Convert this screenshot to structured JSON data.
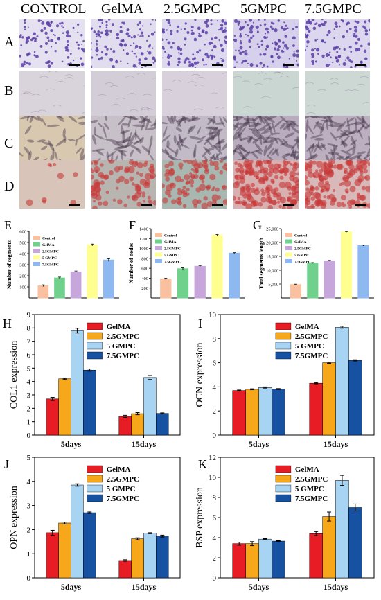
{
  "columns": [
    "CONTROL",
    "GelMA",
    "2.5GMPC",
    "5GMPC",
    "7.5GMPC"
  ],
  "rows": [
    {
      "label": "A",
      "stain": "crystal-violet",
      "bg": [
        "#e6e1f0",
        "#e1dcee",
        "#ddd8ee",
        "#d6d0ec",
        "#dcd6ee"
      ],
      "fg": "#5a3fa6",
      "density": [
        0.55,
        0.6,
        0.62,
        0.68,
        0.6
      ]
    },
    {
      "label": "B",
      "stain": "pale",
      "bg": [
        "#d9d3dc",
        "#d3cdd8",
        "#d8d0da",
        "#c9d6d1",
        "#cdd8d4"
      ],
      "fg": "#9e90a6",
      "density": [
        0.08,
        0.08,
        0.08,
        0.08,
        0.08
      ]
    },
    {
      "label": "C",
      "stain": "alp",
      "bg": [
        "#d8c8b0",
        "#c8c0c8",
        "#c2bac6",
        "#b8acbe",
        "#bcb0c0"
      ],
      "fg": "#4a3a4e",
      "density": [
        0.2,
        0.35,
        0.45,
        0.55,
        0.5
      ]
    },
    {
      "label": "D",
      "stain": "alizarin",
      "bg": [
        "#d8c4b8",
        "#b8b4b0",
        "#a8b8b0",
        "#d8b0b0",
        "#d8b8b8"
      ],
      "fg": "#c83838",
      "density": [
        0.05,
        0.45,
        0.5,
        0.85,
        0.8
      ]
    }
  ],
  "small_charts": [
    {
      "panel": "E",
      "ylabel": "Number of segments",
      "ylim": [
        0,
        600
      ],
      "yticks": [
        100,
        200,
        300,
        400,
        500,
        600
      ],
      "legend": [
        "Control",
        "GelMA",
        "2.5GMPC",
        "5 GMPC",
        "7.5GMPC"
      ],
      "values": [
        110,
        180,
        235,
        478,
        342
      ],
      "errors": [
        8,
        8,
        8,
        8,
        12
      ]
    },
    {
      "panel": "F",
      "ylabel": "Number of nodes",
      "ylim": [
        0,
        1400
      ],
      "yticks": [
        200,
        400,
        600,
        800,
        1000,
        1200,
        1400
      ],
      "legend": [
        "Control",
        "GelMA",
        "2.5GMPC",
        "5 GMPC",
        "7.5GMPC"
      ],
      "values": [
        385,
        590,
        640,
        1265,
        905
      ],
      "errors": [
        15,
        20,
        15,
        15,
        10
      ]
    },
    {
      "panel": "G",
      "ylabel": "Total segments length",
      "ylim": [
        0,
        25000
      ],
      "yticks": [
        5000,
        10000,
        15000,
        20000,
        25000
      ],
      "ytick_labels": [
        "5,000",
        "10,000",
        "15,000",
        "20,000",
        "25,000"
      ],
      "legend": [
        "Control",
        "GelMA",
        "2.5GMPC",
        "5 GMPC",
        "7.5GMPC"
      ],
      "values": [
        4800,
        12600,
        13400,
        23800,
        18900
      ],
      "errors": [
        150,
        150,
        150,
        150,
        150
      ]
    }
  ],
  "small_colors": [
    "#f9c19f",
    "#6fd18c",
    "#c7a6dc",
    "#ffff90",
    "#8db8f0"
  ],
  "chart_data": [
    {
      "type": "bar",
      "panel": "H",
      "ylabel": "COL1 expression",
      "ylim": [
        0,
        9
      ],
      "yticks": [
        0,
        1,
        2,
        3,
        4,
        5,
        6,
        7,
        8,
        9
      ],
      "categories": [
        "5days",
        "15days"
      ],
      "series": [
        {
          "name": "GelMA",
          "values": [
            2.7,
            1.4
          ],
          "errors": [
            0.12,
            0.08
          ]
        },
        {
          "name": "2.5GMPC",
          "values": [
            4.2,
            1.6
          ],
          "errors": [
            0.05,
            0.08
          ]
        },
        {
          "name": "5 GMPC",
          "values": [
            7.8,
            4.3
          ],
          "errors": [
            0.18,
            0.15
          ]
        },
        {
          "name": "7.5GMPC",
          "values": [
            4.85,
            1.62
          ],
          "errors": [
            0.08,
            0.04
          ]
        }
      ]
    },
    {
      "type": "bar",
      "panel": "I",
      "ylabel": "OCN expression",
      "ylim": [
        0,
        10
      ],
      "yticks": [
        0,
        2,
        4,
        6,
        8,
        10
      ],
      "categories": [
        "5days",
        "15days"
      ],
      "series": [
        {
          "name": "GelMA",
          "values": [
            3.7,
            4.3
          ],
          "errors": [
            0.04,
            0.05
          ]
        },
        {
          "name": "2.5GMPC",
          "values": [
            3.8,
            6.0
          ],
          "errors": [
            0.04,
            0.05
          ]
        },
        {
          "name": "5 GMPC",
          "values": [
            3.95,
            8.95
          ],
          "errors": [
            0.05,
            0.08
          ]
        },
        {
          "name": "7.5GMPC",
          "values": [
            3.82,
            6.2
          ],
          "errors": [
            0.04,
            0.05
          ]
        }
      ]
    },
    {
      "type": "bar",
      "panel": "J",
      "ylabel": "OPN expression",
      "ylim": [
        0,
        5
      ],
      "yticks": [
        0,
        1,
        2,
        3,
        4,
        5
      ],
      "categories": [
        "5days",
        "15days"
      ],
      "series": [
        {
          "name": "GelMA",
          "values": [
            1.87,
            0.72
          ],
          "errors": [
            0.1,
            0.03
          ]
        },
        {
          "name": "2.5GMPC",
          "values": [
            2.27,
            1.62
          ],
          "errors": [
            0.04,
            0.04
          ]
        },
        {
          "name": "5 GMPC",
          "values": [
            3.85,
            1.85
          ],
          "errors": [
            0.05,
            0.02
          ]
        },
        {
          "name": "7.5GMPC",
          "values": [
            2.7,
            1.73
          ],
          "errors": [
            0.03,
            0.04
          ]
        }
      ]
    },
    {
      "type": "bar",
      "panel": "K",
      "ylabel": "BSP expression",
      "ylim": [
        0,
        12
      ],
      "yticks": [
        0,
        2,
        4,
        6,
        8,
        10,
        12
      ],
      "categories": [
        "5days",
        "15days"
      ],
      "series": [
        {
          "name": "GelMA",
          "values": [
            3.4,
            4.4
          ],
          "errors": [
            0.15,
            0.2
          ]
        },
        {
          "name": "2.5GMPC",
          "values": [
            3.4,
            6.1
          ],
          "errors": [
            0.2,
            0.45
          ]
        },
        {
          "name": "5 GMPC",
          "values": [
            3.85,
            9.7
          ],
          "errors": [
            0.05,
            0.5
          ]
        },
        {
          "name": "7.5GMPC",
          "values": [
            3.65,
            7.0
          ],
          "errors": [
            0.04,
            0.35
          ]
        }
      ]
    }
  ],
  "big_colors": [
    "#e81c24",
    "#f6a81a",
    "#a8d4f4",
    "#1751a1"
  ]
}
